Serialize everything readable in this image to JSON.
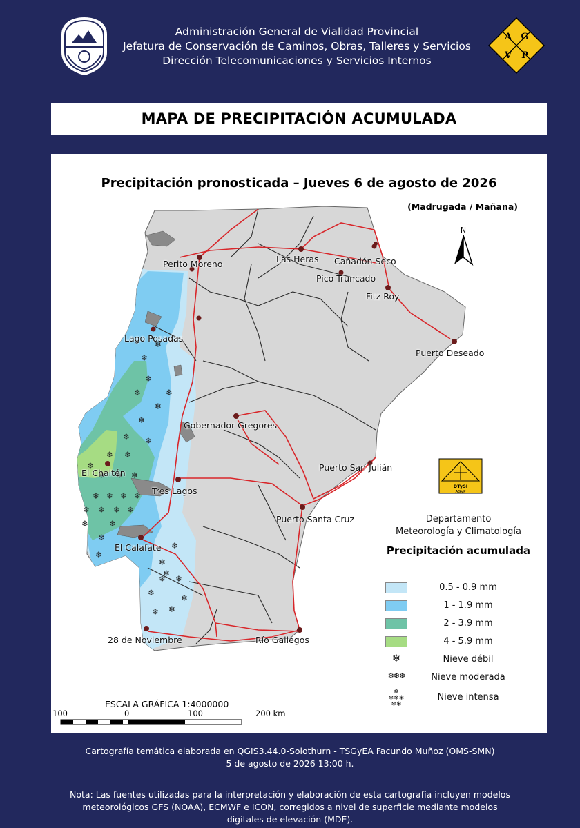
{
  "header": {
    "line1": "Administración General de Vialidad Provincial",
    "line2": "Jefatura de Conservación de Caminos, Obras, Talleres y Servicios",
    "line3": "Dirección Telecomunicaciones y Servicios Internos",
    "logo_letters": [
      "A",
      "G",
      "V",
      "P"
    ]
  },
  "title": "MAPA DE PRECIPITACIÓN ACUMULADA",
  "map": {
    "title": "Precipitación pronosticada – Jueves 6 de agosto de 2026",
    "subtitle": "(Madrugada / Mañana)",
    "north": "N",
    "places": {
      "perito_moreno": "Perito Moreno",
      "las_heras": "Las Heras",
      "canadon_seco": "Cañadón Seco",
      "pico_truncado": "Pico Truncado",
      "fitz_roy": "Fitz Roy",
      "lago_posadas": "Lago Posadas",
      "puerto_deseado": "Puerto Deseado",
      "gobernador_gregores": "Gobernador Gregores",
      "puerto_san_julian": "Puerto San Julián",
      "el_chalten": "El Chaltén",
      "tres_lagos": "Tres Lagos",
      "puerto_santa_cruz": "Puerto Santa Cruz",
      "el_calafate": "El Calafate",
      "veintiocho_noviembre": "28 de Noviembre",
      "rio_gallegos": "Río Gallegos"
    }
  },
  "department": {
    "logo_text": "DTySI",
    "logo_sub": "AGVP",
    "line1": "Departamento",
    "line2": "Meteorología y Climatología"
  },
  "legend": {
    "title": "Precipitación acumulada",
    "items": [
      {
        "label": "0.5 - 0.9 mm",
        "color": "#c3e6f7"
      },
      {
        "label": "1 - 1.9 mm",
        "color": "#7fccf2"
      },
      {
        "label": "2 - 3.9 mm",
        "color": "#6ec3a6"
      },
      {
        "label": "4 - 5.9 mm",
        "color": "#a6dc83"
      }
    ],
    "snow": [
      {
        "label": "Nieve débil",
        "icon": "snowflake-1"
      },
      {
        "label": "Nieve moderada",
        "icon": "snowflake-3"
      },
      {
        "label": "Nieve intensa",
        "icon": "snowflake-6"
      }
    ]
  },
  "scale": {
    "title": "ESCALA GRÁFICA 1:4000000",
    "ticks": [
      "100",
      "0",
      "100",
      "200 km"
    ]
  },
  "colors": {
    "background": "#22285d",
    "land": "#d7d7d7",
    "lakes": "#8a8a8a",
    "roads": "#d8262a",
    "tracks": "#2b2b2b"
  },
  "footer": {
    "credit": "Cartografía temática elaborada en QGIS3.44.0-Solothurn - TSGyEA Facundo Muñoz (OMS-SMN)",
    "date": "5 de agosto de 2026 13:00 h.",
    "note1": "Nota: Las fuentes utilizadas para la interpretación y elaboración de esta cartografía incluyen modelos",
    "note2": "meteorológicos GFS (NOAA), ECMWF e ICON, corregidos a nivel de superficie mediante modelos",
    "note3": "digitales de elevación (MDE)."
  }
}
